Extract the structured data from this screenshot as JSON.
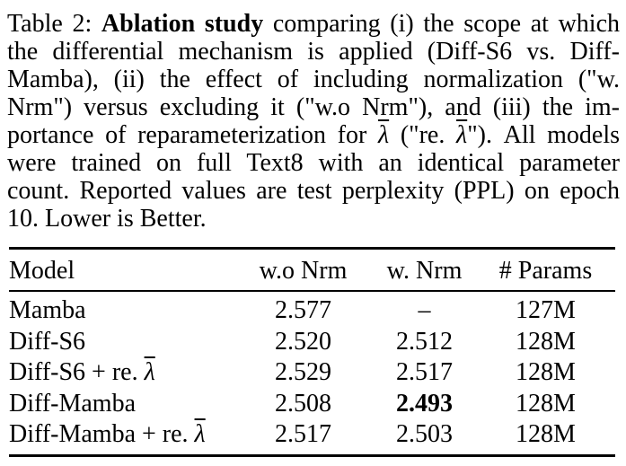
{
  "caption": {
    "lines": [
      {
        "runs": [
          {
            "t": "Table 2: "
          },
          {
            "t": "Ablation study",
            "style": "bold"
          },
          {
            "t": " comparing (i) the scope at which"
          }
        ]
      },
      {
        "runs": [
          {
            "t": "the differential mechanism is applied (Diff-S6 vs. Diff-"
          }
        ]
      },
      {
        "runs": [
          {
            "t": "Mamba), (ii) the effect of including normalization (\"w."
          }
        ]
      },
      {
        "runs": [
          {
            "t": "Nrm\") versus excluding it (\"w.o Nrm\"), and (iii) the im-"
          }
        ]
      },
      {
        "runs": [
          {
            "t": "portance of reparameterization for "
          },
          {
            "t": "λ",
            "style": "overline-italic"
          },
          {
            "t": " (\"re. "
          },
          {
            "t": "λ",
            "style": "overline-italic"
          },
          {
            "t": "\"). All models"
          }
        ]
      },
      {
        "runs": [
          {
            "t": "were trained on full Text8 with an identical parameter"
          }
        ]
      },
      {
        "runs": [
          {
            "t": "count. Reported values are test perplexity (PPL) on epoch"
          }
        ]
      },
      {
        "runs": [
          {
            "t": "10. Lower is Better."
          }
        ]
      }
    ]
  },
  "table": {
    "headers": [
      "Model",
      "w.o Nrm",
      "w. Nrm",
      "# Params"
    ],
    "rows": [
      {
        "model": "Mamba",
        "model_lambda": "",
        "wo_nrm": "2.577",
        "w_nrm": "–",
        "params": "127M"
      },
      {
        "model": "Diff-S6",
        "model_lambda": "",
        "wo_nrm": "2.520",
        "w_nrm": "2.512",
        "params": "128M"
      },
      {
        "model": "Diff-S6 + re. ",
        "model_lambda": "λ",
        "wo_nrm": "2.529",
        "w_nrm": "2.517",
        "params": "128M"
      },
      {
        "model": "Diff-Mamba",
        "model_lambda": "",
        "wo_nrm": "2.508",
        "w_nrm": "2.493",
        "params": "128M",
        "w_nrm_bold": true
      },
      {
        "model": "Diff-Mamba + re. ",
        "model_lambda": "λ",
        "wo_nrm": "2.517",
        "w_nrm": "2.503",
        "params": "128M"
      }
    ]
  },
  "colors": {
    "text": "#000000",
    "background": "#ffffff"
  }
}
